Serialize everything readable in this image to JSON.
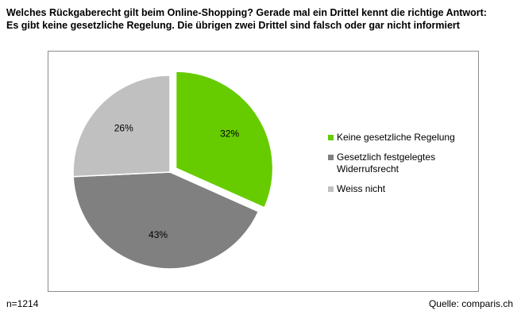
{
  "title": {
    "line1": "Welches Rückgaberecht gilt beim Online-Shopping? Gerade mal ein Drittel kennt die richtige Antwort:",
    "line2": "Es gibt keine gesetzliche Regelung. Die übrigen zwei Drittel sind falsch oder gar nicht informiert"
  },
  "footer": {
    "sample": "n=1214",
    "source": "Quelle: comparis.ch"
  },
  "colors": {
    "keine": "#66cc00",
    "gesetzlich": "#808080",
    "weiss": "#c0c0c0",
    "border": "#8c8c8c"
  },
  "chart_data": {
    "type": "pie",
    "title": "Welches Rückgaberecht gilt beim Online-Shopping? Gerade mal ein Drittel kennt die richtige Antwort: Es gibt keine gesetzliche Regelung. Die übrigen zwei Drittel sind falsch oder gar nicht informiert",
    "legend_position": "right",
    "slices": [
      {
        "label": "Keine gesetzliche Regelung",
        "value": 32,
        "display": "32%",
        "color": "#66cc00",
        "exploded": true
      },
      {
        "label": "Gesetzlich festgelegtes Widerrufsrecht",
        "value": 43,
        "display": "43%",
        "color": "#808080",
        "exploded": false
      },
      {
        "label": "Weiss nicht",
        "value": 26,
        "display": "26%",
        "color": "#c0c0c0",
        "exploded": false
      }
    ],
    "legend": [
      {
        "line1": "Keine gesetzliche Regelung",
        "line2": ""
      },
      {
        "line1": "Gesetzlich festgelegtes",
        "line2": "Widerrufsrecht"
      },
      {
        "line1": "Weiss nicht",
        "line2": ""
      }
    ]
  }
}
